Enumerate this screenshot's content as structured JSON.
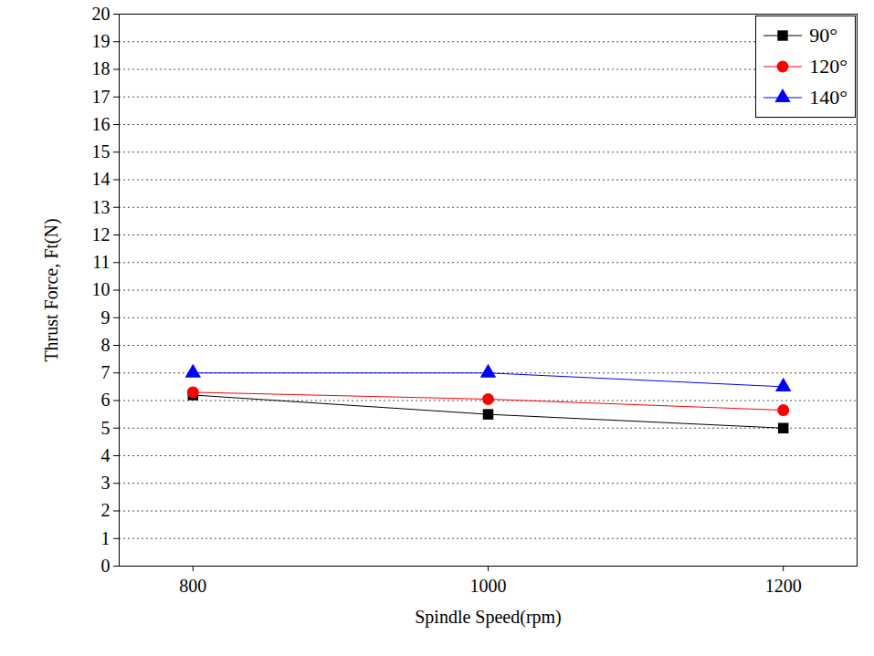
{
  "chart_data": {
    "type": "line",
    "x_label": "Spindle Speed(rpm)",
    "y_label": "Thrust Force, Ft(N)",
    "x": [
      800,
      1000,
      1200
    ],
    "series": [
      {
        "name": "90°",
        "color": "#000000",
        "marker": "square",
        "values": [
          6.2,
          5.5,
          5.0
        ]
      },
      {
        "name": "120°",
        "color": "#ff0000",
        "marker": "circle",
        "values": [
          6.3,
          6.05,
          5.65
        ]
      },
      {
        "name": "140°",
        "color": "#0000ff",
        "marker": "triangle",
        "values": [
          7.0,
          7.0,
          6.5
        ]
      }
    ],
    "xlim": [
      750,
      1250
    ],
    "xticks": [
      800,
      1000,
      1200
    ],
    "ylim": [
      0,
      20
    ],
    "yticks": [
      0,
      1,
      2,
      3,
      4,
      5,
      6,
      7,
      8,
      9,
      10,
      11,
      12,
      13,
      14,
      15,
      16,
      17,
      18,
      19,
      20
    ],
    "grid": true,
    "legend": "top-right"
  }
}
